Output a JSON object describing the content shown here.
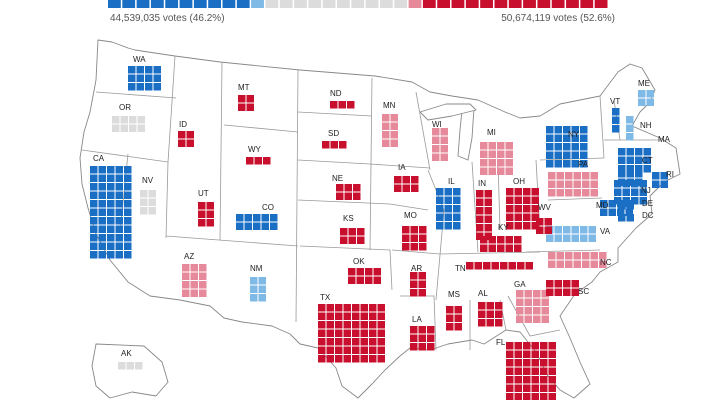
{
  "colors": {
    "solid_dem": "#1a6ec4",
    "lean_dem": "#7fb9e6",
    "tossup": "#dcdcdc",
    "lean_rep": "#e6899a",
    "solid_rep": "#c8102e"
  },
  "popular_vote": {
    "left": {
      "text": "44,539,035 votes (46.2%)"
    },
    "right": {
      "text": "50,674,119 votes (52.6%)"
    },
    "segments": [
      {
        "category": "solid_dem",
        "count": 10
      },
      {
        "category": "lean_dem",
        "count": 1
      },
      {
        "category": "tossup",
        "count": 10
      },
      {
        "category": "lean_rep",
        "count": 1
      },
      {
        "category": "solid_rep",
        "count": 13
      }
    ]
  },
  "states": [
    {
      "abbr": "WA",
      "category": "solid_dem",
      "cols": 4,
      "rows": 3
    },
    {
      "abbr": "OR",
      "category": "tossup",
      "cols": 4,
      "rows": 2
    },
    {
      "abbr": "CA",
      "category": "solid_dem",
      "cols": 5,
      "rows": 11
    },
    {
      "abbr": "NV",
      "category": "tossup",
      "cols": 2,
      "rows": 3
    },
    {
      "abbr": "ID",
      "category": "solid_rep",
      "cols": 2,
      "rows": 2
    },
    {
      "abbr": "MT",
      "category": "solid_rep",
      "cols": 2,
      "rows": 2
    },
    {
      "abbr": "WY",
      "category": "solid_rep",
      "cols": 3,
      "rows": 1
    },
    {
      "abbr": "UT",
      "category": "solid_rep",
      "cols": 2,
      "rows": 3
    },
    {
      "abbr": "CO",
      "category": "solid_dem",
      "cols": 5,
      "rows": 2
    },
    {
      "abbr": "AZ",
      "category": "lean_rep",
      "cols": 3,
      "rows": 4
    },
    {
      "abbr": "NM",
      "category": "lean_dem",
      "cols": 2,
      "rows": 3
    },
    {
      "abbr": "ND",
      "category": "solid_rep",
      "cols": 3,
      "rows": 1
    },
    {
      "abbr": "SD",
      "category": "solid_rep",
      "cols": 3,
      "rows": 1
    },
    {
      "abbr": "NE",
      "category": "solid_rep",
      "cols": 3,
      "rows": 2
    },
    {
      "abbr": "KS",
      "category": "solid_rep",
      "cols": 3,
      "rows": 2
    },
    {
      "abbr": "OK",
      "category": "solid_rep",
      "cols": 4,
      "rows": 2
    },
    {
      "abbr": "TX",
      "category": "solid_rep",
      "cols": 8,
      "rows": 7
    },
    {
      "abbr": "MN",
      "category": "lean_rep",
      "cols": 2,
      "rows": 4
    },
    {
      "abbr": "IA",
      "category": "solid_rep",
      "cols": 3,
      "rows": 2
    },
    {
      "abbr": "MO",
      "category": "solid_rep",
      "cols": 3,
      "rows": 3
    },
    {
      "abbr": "AR",
      "category": "solid_rep",
      "cols": 2,
      "rows": 3
    },
    {
      "abbr": "LA",
      "category": "solid_rep",
      "cols": 3,
      "rows": 3
    },
    {
      "abbr": "WI",
      "category": "lean_rep",
      "cols": 2,
      "rows": 4
    },
    {
      "abbr": "IL",
      "category": "solid_dem",
      "cols": 3,
      "rows": 5
    },
    {
      "abbr": "MI",
      "category": "lean_rep",
      "cols": 4,
      "rows": 4
    },
    {
      "abbr": "IN",
      "category": "solid_rep",
      "cols": 2,
      "rows": 6
    },
    {
      "abbr": "OH",
      "category": "solid_rep",
      "cols": 4,
      "rows": 5
    },
    {
      "abbr": "KY",
      "category": "solid_rep",
      "cols": 5,
      "rows": 2
    },
    {
      "abbr": "TN",
      "category": "solid_rep",
      "cols": 8,
      "rows": 1
    },
    {
      "abbr": "MS",
      "category": "solid_rep",
      "cols": 2,
      "rows": 3
    },
    {
      "abbr": "AL",
      "category": "solid_rep",
      "cols": 3,
      "rows": 3
    },
    {
      "abbr": "GA",
      "category": "lean_rep",
      "cols": 4,
      "rows": 4
    },
    {
      "abbr": "FL",
      "category": "solid_rep",
      "cols": 6,
      "rows": 9
    },
    {
      "abbr": "SC",
      "category": "solid_rep",
      "cols": 4,
      "rows": 2
    },
    {
      "abbr": "NC",
      "category": "lean_rep",
      "cols": 7,
      "rows": 2
    },
    {
      "abbr": "VA",
      "category": "lean_dem",
      "cols": 6,
      "rows": 2
    },
    {
      "abbr": "WV",
      "category": "solid_rep",
      "cols": 2,
      "rows": 2
    },
    {
      "abbr": "PA",
      "category": "lean_rep",
      "cols": 6,
      "rows": 3
    },
    {
      "abbr": "NY",
      "category": "solid_dem",
      "cols": 5,
      "rows": 5
    },
    {
      "abbr": "VT",
      "category": "solid_dem",
      "cols": 1,
      "rows": 3
    },
    {
      "abbr": "NH",
      "category": "lean_dem",
      "cols": 1,
      "rows": 3
    },
    {
      "abbr": "ME",
      "category": "lean_dem",
      "cols": 2,
      "rows": 2
    },
    {
      "abbr": "MA",
      "category": "solid_dem",
      "cols": 4,
      "rows": 3
    },
    {
      "abbr": "CT",
      "category": "solid_dem",
      "cols": 3,
      "rows": 2
    },
    {
      "abbr": "RI",
      "category": "solid_dem",
      "cols": 2,
      "rows": 2
    },
    {
      "abbr": "NJ",
      "category": "solid_dem",
      "cols": 4,
      "rows": 3
    },
    {
      "abbr": "DE",
      "category": "solid_dem",
      "cols": 2,
      "rows": 1
    },
    {
      "abbr": "MD",
      "category": "solid_dem",
      "cols": 4,
      "rows": 2
    },
    {
      "abbr": "DC",
      "category": "solid_dem",
      "cols": 2,
      "rows": 1
    },
    {
      "abbr": "AK",
      "category": "tossup",
      "cols": 3,
      "rows": 1
    }
  ]
}
